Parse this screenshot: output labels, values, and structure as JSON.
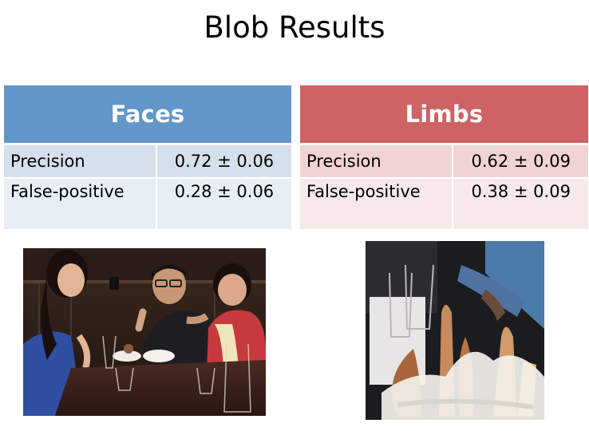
{
  "title": "Blob Results",
  "faces": {
    "header": "Faces",
    "color": "#6396c9",
    "rows": [
      {
        "label": "Precision",
        "value": "0.72 ± 0.06"
      },
      {
        "label": "False-positive",
        "value": "0.28 ± 0.06"
      }
    ]
  },
  "limbs": {
    "header": "Limbs",
    "color": "#ce6264",
    "rows": [
      {
        "label": "Precision",
        "value": "0.62 ± 0.09"
      },
      {
        "label": "False-positive",
        "value": "0.38 ± 0.09"
      }
    ]
  },
  "images": [
    {
      "subject": "restaurant-group-photo"
    },
    {
      "subject": "bread-basket-closeup"
    }
  ]
}
